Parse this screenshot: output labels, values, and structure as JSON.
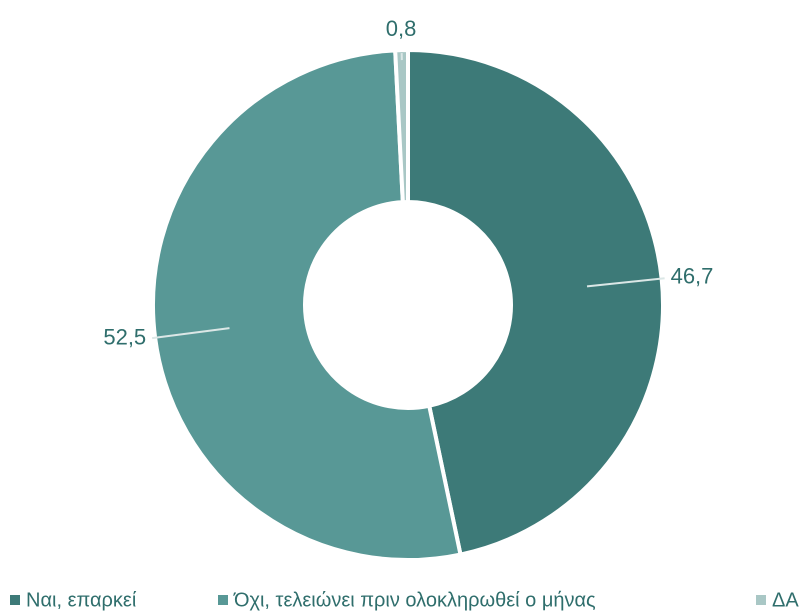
{
  "chart_data": {
    "type": "donut",
    "categories": [
      "Ναι, επαρκεί",
      "Όχι, τελειώνει πριν ολοκληρωθεί ο μήνας",
      "ΔΑ"
    ],
    "values": [
      46.7,
      52.5,
      0.8
    ],
    "value_labels": [
      "46,7",
      "52,5",
      "0,8"
    ],
    "colors": [
      "#3d7a78",
      "#589896",
      "#a9c7c5"
    ],
    "legend": "bottom"
  }
}
